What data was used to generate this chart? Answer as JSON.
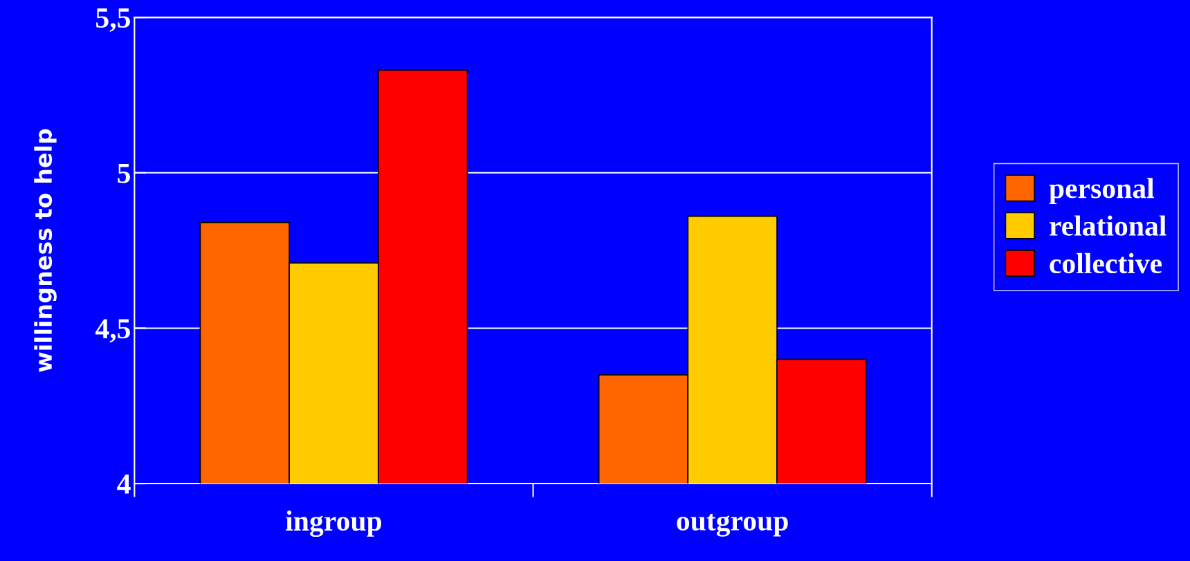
{
  "chart_data": {
    "type": "bar",
    "ylabel": "willingness to help",
    "categories": [
      "ingroup",
      "outgroup"
    ],
    "series": [
      {
        "name": "personal",
        "color": "#ff6600",
        "values": [
          4.84,
          4.35
        ]
      },
      {
        "name": "relational",
        "color": "#ffcc00",
        "values": [
          4.71,
          4.86
        ]
      },
      {
        "name": "collective",
        "color": "#ff0000",
        "values": [
          5.33,
          4.4
        ]
      }
    ],
    "ylim": [
      4,
      5.5
    ],
    "yticks": [
      {
        "value": 4,
        "label": "4"
      },
      {
        "value": 4.5,
        "label": "4,5"
      },
      {
        "value": 5,
        "label": "5"
      },
      {
        "value": 5.5,
        "label": "5,5"
      }
    ],
    "grid": "y",
    "legend": "right"
  }
}
